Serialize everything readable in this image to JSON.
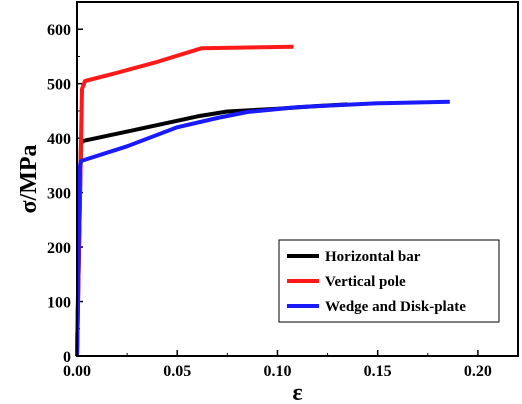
{
  "chart_data": {
    "type": "line",
    "title": "",
    "xlabel": "ε",
    "ylabel": "σ/MPa",
    "xlim": [
      0,
      0.22
    ],
    "ylim": [
      0,
      650
    ],
    "xticks": [
      0.0,
      0.05,
      0.1,
      0.15,
      0.2
    ],
    "xtick_labels": [
      "0.00",
      "0.05",
      "0.10",
      "0.15",
      "0.20"
    ],
    "yticks": [
      0,
      100,
      200,
      300,
      400,
      500,
      600
    ],
    "ytick_labels": [
      "0",
      "100",
      "200",
      "300",
      "400",
      "500",
      "600"
    ],
    "grid": false,
    "legend_position": "lower-right",
    "series": [
      {
        "name": "Horizontal bar",
        "color": "#000000",
        "x": [
          0.0,
          0.002,
          0.003,
          0.025,
          0.06,
          0.075,
          0.1,
          0.12,
          0.135
        ],
        "y": [
          0,
          390,
          395,
          412,
          440,
          449,
          454,
          459,
          462
        ]
      },
      {
        "name": "Vertical pole",
        "color": "#ff1a1a",
        "x": [
          0.0,
          0.0018,
          0.0025,
          0.004,
          0.02,
          0.04,
          0.062,
          0.108
        ],
        "y": [
          0,
          355,
          490,
          505,
          520,
          540,
          565,
          568
        ]
      },
      {
        "name": "Wedge and Disk-plate",
        "color": "#1a1aff",
        "x": [
          0.0,
          0.0015,
          0.002,
          0.025,
          0.05,
          0.07,
          0.085,
          0.11,
          0.15,
          0.186
        ],
        "y": [
          0,
          350,
          358,
          385,
          420,
          437,
          448,
          457,
          464,
          467
        ]
      }
    ]
  }
}
